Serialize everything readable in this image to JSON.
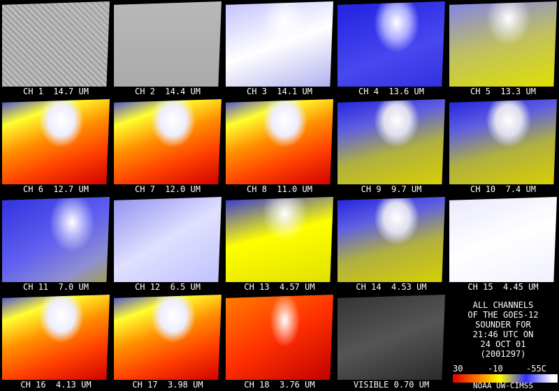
{
  "panels": [
    {
      "label": "CH 1  14.7 UM"
    },
    {
      "label": "CH 2  14.4 UM"
    },
    {
      "label": "CH 3  14.1 UM"
    },
    {
      "label": "CH 4  13.6 UM"
    },
    {
      "label": "CH 5  13.3 UM"
    },
    {
      "label": "CH 6  12.7 UM"
    },
    {
      "label": "CH 7  12.0 UM"
    },
    {
      "label": "CH 8  11.0 UM"
    },
    {
      "label": "CH 9  9.7 UM"
    },
    {
      "label": "CH 10  7.4 UM"
    },
    {
      "label": "CH 11  7.0 UM"
    },
    {
      "label": "CH 12  6.5 UM"
    },
    {
      "label": "CH 13  4.57 UM"
    },
    {
      "label": "CH 14  4.53 UM"
    },
    {
      "label": "CH 15  4.45 UM"
    },
    {
      "label": "CH 16  4.13 UM"
    },
    {
      "label": "CH 17  3.98 UM"
    },
    {
      "label": "CH 18  3.76 UM"
    },
    {
      "label": "VISIBLE 0.70 UM"
    }
  ],
  "info": {
    "lines": [
      "ALL CHANNELS",
      "OF THE GOES-12",
      "SOUNDER FOR",
      "21:46 UTC ON",
      "24 OCT 01",
      "(2001297)"
    ],
    "scale": [
      "30",
      "-10",
      "-55C"
    ],
    "credit": "NOAA UW-CIMSS"
  }
}
